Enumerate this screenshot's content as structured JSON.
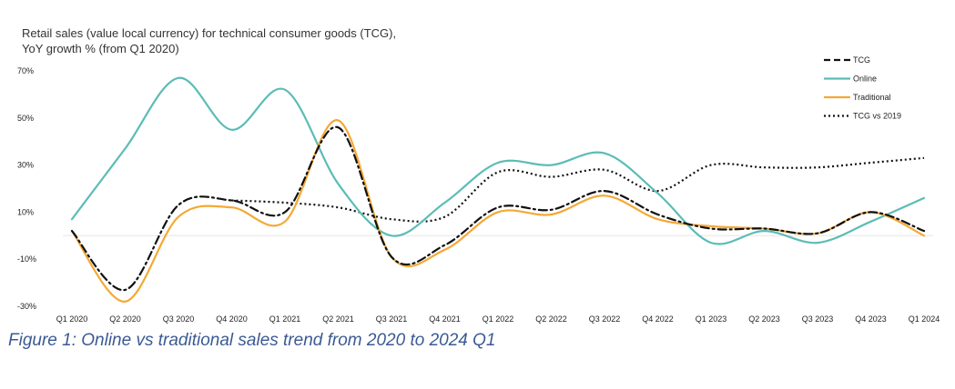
{
  "chart_data": {
    "type": "line",
    "title": "Retail sales (value local currency) for technical consumer goods (TCG),",
    "subtitle": "YoY growth % (from Q1 2020)",
    "xlabel": "",
    "ylabel": "",
    "ylim": [
      -30,
      70
    ],
    "y_ticks": [
      {
        "value": 70,
        "label": "70%"
      },
      {
        "value": 50,
        "label": "50%"
      },
      {
        "value": 30,
        "label": "30%"
      },
      {
        "value": 10,
        "label": "10%"
      },
      {
        "value": -10,
        "label": "-10%"
      },
      {
        "value": -30,
        "label": "-30%"
      }
    ],
    "categories": [
      "Q1 2020",
      "Q2 2020",
      "Q3 2020",
      "Q4 2020",
      "Q1 2021",
      "Q2 2021",
      "Q3 2021",
      "Q4 2021",
      "Q1 2022",
      "Q2 2022",
      "Q3 2022",
      "Q4 2022",
      "Q1 2023",
      "Q2 2023",
      "Q3 2023",
      "Q4 2023",
      "Q1 2024"
    ],
    "legend_position": "top-right",
    "grid": false,
    "series": [
      {
        "name": "TCG",
        "color": "#111111",
        "dash": "dashdot",
        "values": [
          2,
          -23,
          13,
          15,
          10,
          46,
          -9,
          -4,
          12,
          11,
          19,
          9,
          3,
          3,
          1,
          10,
          2
        ]
      },
      {
        "name": "Online",
        "color": "#5bbcb6",
        "dash": "solid",
        "values": [
          7,
          37,
          67,
          45,
          62,
          22,
          0,
          14,
          31,
          30,
          35,
          18,
          -3,
          2,
          -3,
          6,
          16
        ]
      },
      {
        "name": "Traditional",
        "color": "#f5a835",
        "dash": "solid",
        "values": [
          2,
          -28,
          8,
          12,
          6,
          49,
          -9,
          -6,
          10,
          9,
          17,
          7,
          4,
          3,
          1,
          10,
          0
        ]
      },
      {
        "name": "TCG vs 2019",
        "color": "#111111",
        "dash": "dotted",
        "values": [
          null,
          null,
          null,
          15,
          14,
          12,
          7,
          8,
          27,
          25,
          28,
          19,
          30,
          29,
          29,
          31,
          33
        ]
      }
    ]
  },
  "caption": "Figure 1: Online vs traditional sales trend from 2020 to 2024 Q1"
}
